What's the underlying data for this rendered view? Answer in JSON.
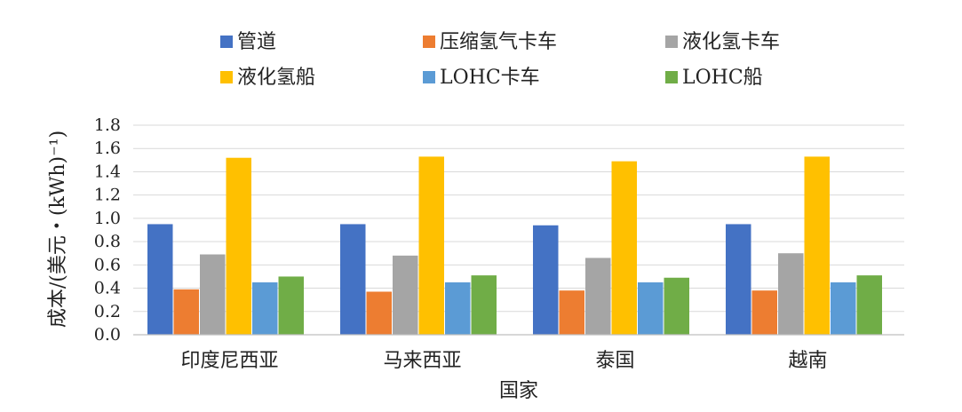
{
  "chart_data": {
    "type": "bar",
    "title": "",
    "xlabel": "国家",
    "ylabel": "成本/(美元・(kWh)⁻¹)",
    "ylim": [
      0,
      1.8
    ],
    "ytick_step": 0.2,
    "yticks": [
      "0.0",
      "0.2",
      "0.4",
      "0.6",
      "0.8",
      "1.0",
      "1.2",
      "1.4",
      "1.6",
      "1.8"
    ],
    "grid": true,
    "legend_position": "top",
    "categories": [
      "印度尼西亚",
      "马来西亚",
      "泰国",
      "越南"
    ],
    "series": [
      {
        "name": "管道",
        "color": "#4472C4",
        "values": [
          0.95,
          0.95,
          0.94,
          0.95
        ]
      },
      {
        "name": "压缩氢气卡车",
        "color": "#ED7D31",
        "values": [
          0.39,
          0.37,
          0.38,
          0.38
        ]
      },
      {
        "name": "液化氢卡车",
        "color": "#A5A5A5",
        "values": [
          0.69,
          0.68,
          0.66,
          0.7
        ]
      },
      {
        "name": "液化氢船",
        "color": "#FFC000",
        "values": [
          1.52,
          1.53,
          1.49,
          1.53
        ]
      },
      {
        "name": "LOHC卡车",
        "color": "#5B9BD5",
        "values": [
          0.45,
          0.45,
          0.45,
          0.45
        ]
      },
      {
        "name": "LOHC船",
        "color": "#70AD47",
        "values": [
          0.5,
          0.51,
          0.49,
          0.51
        ]
      }
    ]
  }
}
